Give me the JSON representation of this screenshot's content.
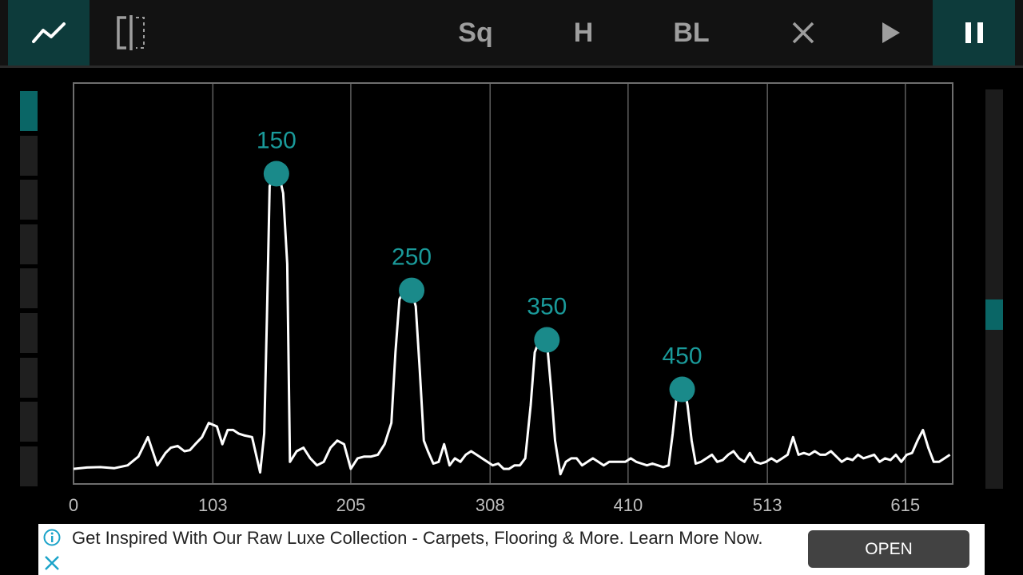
{
  "toolbar": {
    "graph_icon": "line-chart-icon",
    "split_icon": "split-view-icon",
    "sq_label": "Sq",
    "h_label": "H",
    "bl_label": "BL",
    "close_icon": "close-icon",
    "play_icon": "play-icon",
    "pause_icon": "pause-icon",
    "active_color": "#0d3b3b",
    "inactive_color": "#9e9e9e"
  },
  "level_meter": {
    "segments": 9,
    "active_segments": 1,
    "active_color": "#0a6666"
  },
  "scrollbar": {
    "position_fraction": 0.57
  },
  "chart_data": {
    "type": "line",
    "x_ticks": [
      "0",
      "103",
      "205",
      "308",
      "410",
      "513",
      "615"
    ],
    "xlim": [
      0,
      650
    ],
    "ylim": [
      0,
      1
    ],
    "grid": true,
    "peak_labels": [
      {
        "label": "150",
        "x": 150,
        "y": 0.855
      },
      {
        "label": "250",
        "x": 250,
        "y": 0.525
      },
      {
        "label": "350",
        "x": 350,
        "y": 0.385
      },
      {
        "label": "450",
        "x": 450,
        "y": 0.245
      }
    ],
    "series": [
      {
        "color": "#ffffff",
        "x": [
          0,
          10,
          20,
          30,
          40,
          48,
          55,
          62,
          68,
          72,
          77,
          82,
          86,
          90,
          95,
          100,
          106,
          110,
          114,
          118,
          122,
          126,
          132,
          138,
          141,
          143,
          145,
          148,
          150,
          152,
          155,
          158,
          160,
          165,
          170,
          175,
          180,
          185,
          190,
          195,
          200,
          205,
          210,
          215,
          220,
          225,
          230,
          235,
          238,
          241,
          244,
          247,
          250,
          253,
          256,
          259,
          262,
          266,
          270,
          274,
          278,
          282,
          286,
          290,
          294,
          298,
          302,
          306,
          310,
          314,
          318,
          322,
          326,
          330,
          334,
          338,
          341,
          344,
          347,
          350,
          353,
          356,
          360,
          364,
          368,
          372,
          376,
          380,
          384,
          388,
          392,
          396,
          400,
          404,
          408,
          412,
          416,
          420,
          424,
          428,
          432,
          436,
          440,
          443,
          446,
          448,
          450,
          452,
          454,
          457,
          460,
          464,
          468,
          472,
          476,
          480,
          484,
          488,
          492,
          496,
          500,
          504,
          508,
          512,
          516,
          520,
          524,
          528,
          532,
          536,
          540,
          544,
          548,
          552,
          556,
          560,
          564,
          568,
          572,
          576,
          580,
          584,
          588,
          592,
          596,
          600,
          604,
          608,
          612,
          616,
          620,
          624,
          628,
          632,
          636,
          640,
          644,
          648
        ],
        "y": [
          0.02,
          0.024,
          0.025,
          0.022,
          0.03,
          0.055,
          0.11,
          0.03,
          0.065,
          0.08,
          0.085,
          0.07,
          0.073,
          0.09,
          0.11,
          0.15,
          0.14,
          0.09,
          0.13,
          0.13,
          0.12,
          0.115,
          0.11,
          0.01,
          0.12,
          0.45,
          0.82,
          0.85,
          0.855,
          0.85,
          0.8,
          0.6,
          0.04,
          0.07,
          0.08,
          0.05,
          0.03,
          0.04,
          0.08,
          0.1,
          0.09,
          0.02,
          0.05,
          0.055,
          0.055,
          0.06,
          0.09,
          0.15,
          0.35,
          0.5,
          0.52,
          0.525,
          0.52,
          0.48,
          0.3,
          0.1,
          0.07,
          0.035,
          0.04,
          0.09,
          0.03,
          0.05,
          0.04,
          0.06,
          0.07,
          0.06,
          0.05,
          0.04,
          0.03,
          0.035,
          0.02,
          0.02,
          0.03,
          0.03,
          0.05,
          0.2,
          0.35,
          0.38,
          0.385,
          0.38,
          0.25,
          0.1,
          0.005,
          0.04,
          0.05,
          0.05,
          0.03,
          0.04,
          0.05,
          0.04,
          0.03,
          0.04,
          0.04,
          0.04,
          0.04,
          0.05,
          0.04,
          0.035,
          0.03,
          0.035,
          0.03,
          0.025,
          0.03,
          0.12,
          0.23,
          0.24,
          0.245,
          0.24,
          0.2,
          0.1,
          0.035,
          0.04,
          0.05,
          0.06,
          0.04,
          0.045,
          0.06,
          0.07,
          0.05,
          0.04,
          0.065,
          0.04,
          0.035,
          0.04,
          0.05,
          0.04,
          0.05,
          0.06,
          0.11,
          0.06,
          0.065,
          0.06,
          0.07,
          0.06,
          0.06,
          0.07,
          0.055,
          0.04,
          0.05,
          0.045,
          0.06,
          0.05,
          0.055,
          0.06,
          0.04,
          0.05,
          0.045,
          0.06,
          0.04,
          0.06,
          0.065,
          0.1,
          0.13,
          0.08,
          0.04,
          0.04,
          0.05,
          0.06
        ]
      }
    ]
  },
  "ad": {
    "info_icon": "info-icon",
    "close_icon": "ad-close-icon",
    "text": "Get Inspired With Our Raw Luxe Collection - Carpets, Flooring & More. Learn More Now.",
    "button_label": "OPEN"
  }
}
